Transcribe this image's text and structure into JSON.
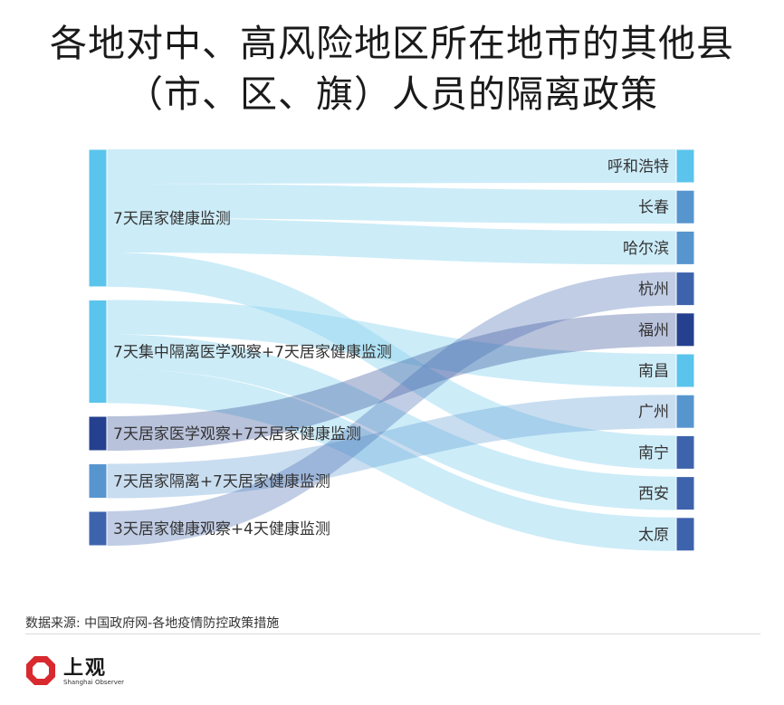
{
  "title": {
    "line1": "各地对中、高风险地区所在地市的其他县",
    "line2": "（市、区、旗）人员的隔离政策"
  },
  "source": "数据来源: 中国政府网-各地疫情防控政策措施",
  "logo": {
    "name": "上观",
    "sub": "Shanghai Observer"
  },
  "chart_data": {
    "type": "sankey",
    "sources": [
      {
        "name": "7天居家健康监测",
        "color": "#5bc4ec"
      },
      {
        "name": "7天集中隔离医学观察+7天居家健康监测",
        "color": "#5bc4ec"
      },
      {
        "name": "7天居家医学观察+7天居家健康监测",
        "color": "#24408e"
      },
      {
        "name": "7天居家隔离+7天居家健康监测",
        "color": "#5795cf"
      },
      {
        "name": "3天居家健康观察+4天健康监测",
        "color": "#3e63ad"
      }
    ],
    "targets": [
      {
        "name": "呼和浩特",
        "color": "#5bc4ec"
      },
      {
        "name": "长春",
        "color": "#5795cf"
      },
      {
        "name": "哈尔滨",
        "color": "#5795cf"
      },
      {
        "name": "杭州",
        "color": "#3e63ad"
      },
      {
        "name": "福州",
        "color": "#24408e"
      },
      {
        "name": "南昌",
        "color": "#5bc4ec"
      },
      {
        "name": "广州",
        "color": "#5795cf"
      },
      {
        "name": "南宁",
        "color": "#3e63ad"
      },
      {
        "name": "西安",
        "color": "#3e63ad"
      },
      {
        "name": "太原",
        "color": "#3e63ad"
      }
    ],
    "links": [
      {
        "source": "7天居家健康监测",
        "target": "呼和浩特",
        "value": 1
      },
      {
        "source": "7天居家健康监测",
        "target": "长春",
        "value": 1
      },
      {
        "source": "7天居家健康监测",
        "target": "哈尔滨",
        "value": 1
      },
      {
        "source": "7天居家健康监测",
        "target": "南宁",
        "value": 1
      },
      {
        "source": "7天集中隔离医学观察+7天居家健康监测",
        "target": "南昌",
        "value": 1
      },
      {
        "source": "7天集中隔离医学观察+7天居家健康监测",
        "target": "西安",
        "value": 1
      },
      {
        "source": "7天集中隔离医学观察+7天居家健康监测",
        "target": "太原",
        "value": 1
      },
      {
        "source": "7天居家医学观察+7天居家健康监测",
        "target": "福州",
        "value": 1
      },
      {
        "source": "7天居家隔离+7天居家健康监测",
        "target": "广州",
        "value": 1
      },
      {
        "source": "3天居家健康观察+4天健康监测",
        "target": "杭州",
        "value": 1
      }
    ]
  }
}
